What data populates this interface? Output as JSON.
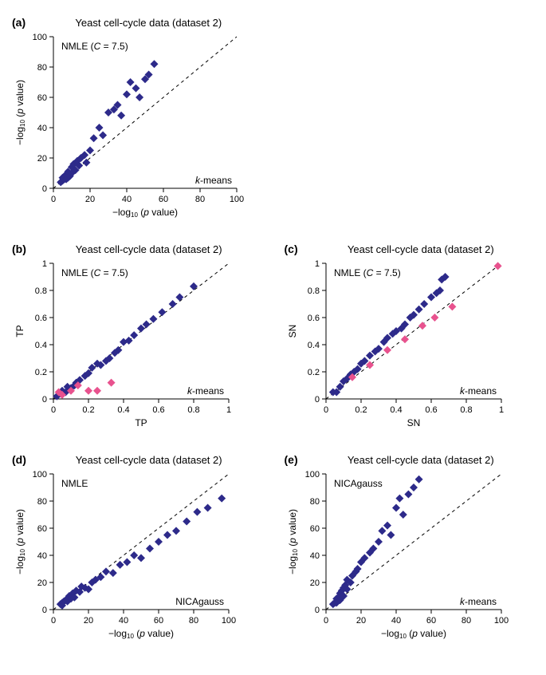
{
  "common_title": "Yeast cell-cycle data (dataset 2)",
  "title_fontsize": 13,
  "letter_fontsize": 14,
  "colors": {
    "point_blue": "#2d2a8a",
    "point_pink": "#e8528e",
    "axis": "#000000",
    "background": "#ffffff"
  },
  "marker": {
    "shape": "diamond",
    "size": 5
  },
  "panels": {
    "a": {
      "letter": "(a)",
      "title": "Yeast cell-cycle data (dataset 2)",
      "top_left": "NMLE (C = 7.5)",
      "bottom_right": "k-means",
      "xlabel": "−log₁₀ (p value)",
      "ylabel": "−log₁₀ (p value)",
      "xlim": [
        0,
        100
      ],
      "ylim": [
        0,
        100
      ],
      "xtick_step": 20,
      "ytick_step": 20,
      "label_fontsize": 12,
      "tick_fontsize": 11,
      "diag": true,
      "points_blue": [
        [
          4,
          4
        ],
        [
          5,
          5
        ],
        [
          5,
          7
        ],
        [
          6,
          6
        ],
        [
          6,
          8
        ],
        [
          7,
          6
        ],
        [
          7,
          9
        ],
        [
          8,
          7
        ],
        [
          8,
          11
        ],
        [
          9,
          8
        ],
        [
          10,
          10
        ],
        [
          10,
          14
        ],
        [
          11,
          13
        ],
        [
          11,
          16
        ],
        [
          12,
          12
        ],
        [
          13,
          18
        ],
        [
          14,
          15
        ],
        [
          15,
          20
        ],
        [
          17,
          22
        ],
        [
          18,
          17
        ],
        [
          20,
          25
        ],
        [
          22,
          33
        ],
        [
          25,
          40
        ],
        [
          27,
          35
        ],
        [
          30,
          50
        ],
        [
          33,
          52
        ],
        [
          35,
          55
        ],
        [
          37,
          48
        ],
        [
          40,
          62
        ],
        [
          42,
          70
        ],
        [
          45,
          66
        ],
        [
          47,
          60
        ],
        [
          50,
          72
        ],
        [
          52,
          75
        ],
        [
          55,
          82
        ]
      ]
    },
    "b": {
      "letter": "(b)",
      "title": "Yeast cell-cycle data (dataset 2)",
      "top_left": "NMLE (C = 7.5)",
      "bottom_right": "k-means",
      "xlabel": "TP",
      "ylabel": "TP",
      "xlim": [
        0,
        1
      ],
      "ylim": [
        0,
        1
      ],
      "xtick_step": 0.2,
      "ytick_step": 0.2,
      "label_fontsize": 12,
      "tick_fontsize": 11,
      "diag": true,
      "points_blue": [
        [
          0.02,
          0.02
        ],
        [
          0.04,
          0.04
        ],
        [
          0.05,
          0.06
        ],
        [
          0.07,
          0.05
        ],
        [
          0.08,
          0.09
        ],
        [
          0.1,
          0.08
        ],
        [
          0.12,
          0.1
        ],
        [
          0.13,
          0.12
        ],
        [
          0.15,
          0.14
        ],
        [
          0.18,
          0.17
        ],
        [
          0.2,
          0.19
        ],
        [
          0.22,
          0.23
        ],
        [
          0.25,
          0.26
        ],
        [
          0.27,
          0.25
        ],
        [
          0.3,
          0.28
        ],
        [
          0.32,
          0.3
        ],
        [
          0.35,
          0.34
        ],
        [
          0.37,
          0.36
        ],
        [
          0.4,
          0.42
        ],
        [
          0.43,
          0.43
        ],
        [
          0.46,
          0.47
        ],
        [
          0.5,
          0.52
        ],
        [
          0.53,
          0.55
        ],
        [
          0.57,
          0.59
        ],
        [
          0.62,
          0.64
        ],
        [
          0.68,
          0.7
        ],
        [
          0.72,
          0.75
        ],
        [
          0.8,
          0.83
        ]
      ],
      "points_pink": [
        [
          0.03,
          0.05
        ],
        [
          0.05,
          0.03
        ],
        [
          0.1,
          0.06
        ],
        [
          0.14,
          0.1
        ],
        [
          0.2,
          0.06
        ],
        [
          0.25,
          0.06
        ],
        [
          0.33,
          0.12
        ]
      ]
    },
    "c": {
      "letter": "(c)",
      "title": "Yeast cell-cycle data (dataset 2)",
      "top_left": "NMLE (C = 7.5)",
      "bottom_right": "k-means",
      "xlabel": "SN",
      "ylabel": "SN",
      "xlim": [
        0,
        1
      ],
      "ylim": [
        0,
        1
      ],
      "xtick_step": 0.2,
      "ytick_step": 0.2,
      "label_fontsize": 12,
      "tick_fontsize": 11,
      "diag": true,
      "points_blue": [
        [
          0.04,
          0.05
        ],
        [
          0.06,
          0.05
        ],
        [
          0.08,
          0.09
        ],
        [
          0.1,
          0.13
        ],
        [
          0.12,
          0.15
        ],
        [
          0.14,
          0.18
        ],
        [
          0.16,
          0.2
        ],
        [
          0.18,
          0.22
        ],
        [
          0.2,
          0.26
        ],
        [
          0.22,
          0.28
        ],
        [
          0.25,
          0.32
        ],
        [
          0.28,
          0.35
        ],
        [
          0.3,
          0.37
        ],
        [
          0.33,
          0.42
        ],
        [
          0.35,
          0.45
        ],
        [
          0.38,
          0.48
        ],
        [
          0.4,
          0.5
        ],
        [
          0.43,
          0.52
        ],
        [
          0.45,
          0.55
        ],
        [
          0.48,
          0.6
        ],
        [
          0.5,
          0.62
        ],
        [
          0.53,
          0.66
        ],
        [
          0.56,
          0.7
        ],
        [
          0.6,
          0.75
        ],
        [
          0.63,
          0.78
        ],
        [
          0.65,
          0.8
        ],
        [
          0.66,
          0.88
        ],
        [
          0.68,
          0.9
        ]
      ],
      "points_pink": [
        [
          0.15,
          0.16
        ],
        [
          0.25,
          0.25
        ],
        [
          0.35,
          0.36
        ],
        [
          0.45,
          0.44
        ],
        [
          0.55,
          0.54
        ],
        [
          0.62,
          0.6
        ],
        [
          0.72,
          0.68
        ],
        [
          0.98,
          0.98
        ]
      ]
    },
    "d": {
      "letter": "(d)",
      "title": "Yeast cell-cycle data (dataset 2)",
      "top_left": "NMLE",
      "bottom_right": "NICAgauss",
      "xlabel": "−log₁₀ (p value)",
      "ylabel": "−log₁₀ (p value)",
      "xlim": [
        0,
        100
      ],
      "ylim": [
        0,
        100
      ],
      "xtick_step": 20,
      "ytick_step": 20,
      "label_fontsize": 12,
      "tick_fontsize": 11,
      "diag": true,
      "points_blue": [
        [
          4,
          4
        ],
        [
          5,
          5
        ],
        [
          5,
          3
        ],
        [
          6,
          6
        ],
        [
          7,
          7
        ],
        [
          8,
          6
        ],
        [
          9,
          10
        ],
        [
          10,
          8
        ],
        [
          11,
          12
        ],
        [
          12,
          9
        ],
        [
          13,
          14
        ],
        [
          15,
          13
        ],
        [
          16,
          17
        ],
        [
          18,
          16
        ],
        [
          20,
          15
        ],
        [
          22,
          20
        ],
        [
          24,
          22
        ],
        [
          27,
          24
        ],
        [
          30,
          28
        ],
        [
          34,
          27
        ],
        [
          38,
          33
        ],
        [
          42,
          35
        ],
        [
          46,
          40
        ],
        [
          50,
          38
        ],
        [
          55,
          45
        ],
        [
          60,
          50
        ],
        [
          65,
          55
        ],
        [
          70,
          58
        ],
        [
          76,
          65
        ],
        [
          82,
          72
        ],
        [
          88,
          75
        ],
        [
          96,
          82
        ]
      ]
    },
    "e": {
      "letter": "(e)",
      "title": "Yeast cell-cycle data (dataset 2)",
      "top_left": "NICAgauss",
      "bottom_right": "k-means",
      "xlabel": "−log₁₀ (p value)",
      "ylabel": "−log₁₀ (p value)",
      "xlim": [
        0,
        100
      ],
      "ylim": [
        0,
        100
      ],
      "xtick_step": 20,
      "ytick_step": 20,
      "label_fontsize": 12,
      "tick_fontsize": 11,
      "diag": true,
      "points_blue": [
        [
          4,
          4
        ],
        [
          5,
          5
        ],
        [
          6,
          5
        ],
        [
          6,
          8
        ],
        [
          7,
          9
        ],
        [
          8,
          7
        ],
        [
          8,
          12
        ],
        [
          9,
          14
        ],
        [
          10,
          10
        ],
        [
          10,
          16
        ],
        [
          11,
          18
        ],
        [
          12,
          15
        ],
        [
          12,
          22
        ],
        [
          14,
          20
        ],
        [
          15,
          25
        ],
        [
          17,
          28
        ],
        [
          18,
          30
        ],
        [
          20,
          35
        ],
        [
          22,
          38
        ],
        [
          25,
          42
        ],
        [
          27,
          45
        ],
        [
          30,
          50
        ],
        [
          32,
          58
        ],
        [
          35,
          62
        ],
        [
          37,
          55
        ],
        [
          40,
          75
        ],
        [
          42,
          82
        ],
        [
          44,
          70
        ],
        [
          47,
          85
        ],
        [
          50,
          90
        ],
        [
          53,
          96
        ]
      ]
    }
  }
}
